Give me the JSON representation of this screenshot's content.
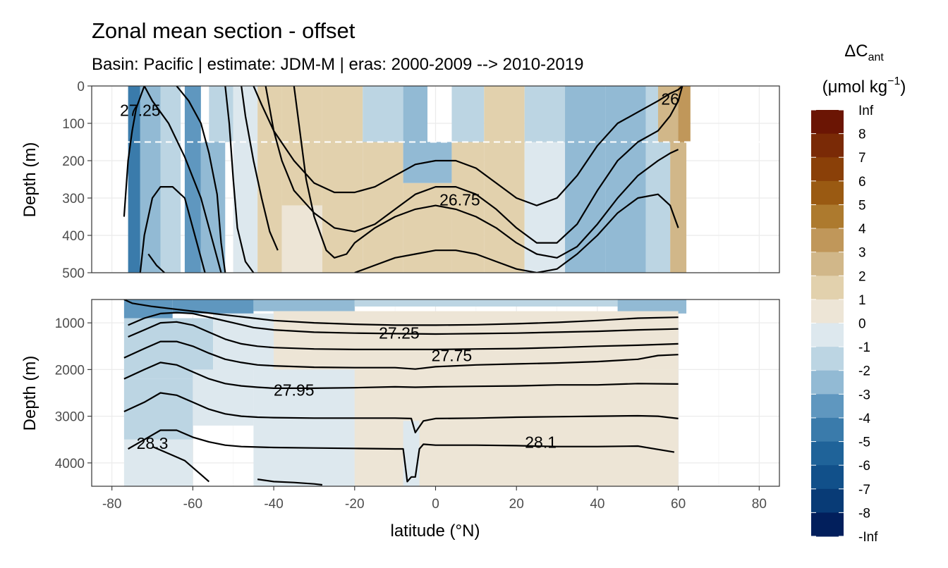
{
  "chart_data": {
    "type": "heatmap",
    "title": "Zonal mean section - offset",
    "subtitle": "Basin: Pacific | estimate: JDM-M | eras: 2000-2009 --> 2010-2019",
    "xlabel": "latitude (°N)",
    "ylabel": "Depth (m)",
    "xlim": [
      -85,
      85
    ],
    "x_ticks": [
      -80,
      -60,
      -40,
      -20,
      0,
      20,
      40,
      60,
      80
    ],
    "x_tick_labels": [
      "-80",
      "-60",
      "-40",
      "-20",
      "0",
      "20",
      "40",
      "60",
      "80"
    ],
    "data_extent_lat": [
      -77,
      62
    ],
    "grid": true,
    "panels": [
      {
        "name": "upper",
        "ylim": [
          0,
          500
        ],
        "y_ticks": [
          0,
          100,
          200,
          300,
          400,
          500
        ],
        "y_tick_labels": [
          "0",
          "100",
          "200",
          "300",
          "400",
          "500"
        ],
        "reference_depth": 150,
        "contour_labels": [
          {
            "text": "27.25",
            "lat": -73,
            "depth": 65
          },
          {
            "text": "26",
            "lat": 58,
            "depth": 35
          },
          {
            "text": "26.75",
            "lat": 6,
            "depth": 305
          }
        ],
        "isopycnals": [
          {
            "lat": [
              -77,
              -76,
              -75,
              -74,
              -72
            ],
            "depth": [
              350,
              200,
              120,
              60,
              0
            ]
          },
          {
            "lat": [
              -73,
              -72,
              -70,
              -68,
              -65,
              -62,
              -60,
              -58,
              -57
            ],
            "depth": [
              500,
              400,
              300,
              270,
              270,
              300,
              380,
              460,
              500
            ]
          },
          {
            "lat": [
              -72,
              -70,
              -66,
              -62,
              -58,
              -55,
              -53
            ],
            "depth": [
              0,
              40,
              100,
              190,
              300,
              420,
              500
            ]
          },
          {
            "lat": [
              -64,
              -61,
              -58,
              -56,
              -54,
              -53,
              -52
            ],
            "depth": [
              0,
              40,
              100,
              180,
              290,
              420,
              500
            ]
          },
          {
            "lat": [
              -52,
              -51,
              -50,
              -49,
              -47,
              -45
            ],
            "depth": [
              0,
              100,
              250,
              380,
              470,
              500
            ]
          },
          {
            "lat": [
              -48,
              -47,
              -45,
              -43,
              -41,
              -39
            ],
            "depth": [
              0,
              80,
              200,
              300,
              390,
              440
            ]
          },
          {
            "lat": [
              -45,
              -43,
              -40,
              -35,
              -30,
              -25,
              -20,
              -15,
              -10,
              -5,
              0,
              5,
              10,
              15,
              20,
              25,
              30,
              35,
              40,
              45,
              50,
              55,
              58,
              60,
              61
            ],
            "depth": [
              0,
              50,
              120,
              200,
              260,
              285,
              285,
              270,
              240,
              210,
              200,
              200,
              220,
              260,
              300,
              320,
              300,
              240,
              160,
              100,
              70,
              40,
              20,
              10,
              0
            ]
          },
          {
            "lat": [
              -42,
              -40,
              -38,
              -35,
              -30,
              -25,
              -20,
              -15,
              -10,
              -5,
              0,
              5,
              10,
              15,
              20,
              25,
              30,
              35,
              40,
              45,
              50,
              55,
              58,
              60,
              61
            ],
            "depth": [
              0,
              120,
              200,
              280,
              340,
              380,
              390,
              370,
              330,
              290,
              270,
              270,
              290,
              330,
              380,
              420,
              420,
              370,
              280,
              200,
              150,
              120,
              80,
              40,
              0
            ]
          },
          {
            "lat": [
              -35,
              -32,
              -30,
              -27,
              -25,
              -22,
              -20,
              -15,
              -10,
              -5,
              0,
              5,
              10,
              15,
              20,
              25,
              30,
              35,
              40,
              45,
              50,
              55,
              58,
              60
            ],
            "depth": [
              0,
              250,
              350,
              440,
              460,
              450,
              420,
              380,
              350,
              330,
              320,
              330,
              350,
              380,
              420,
              450,
              460,
              430,
              370,
              300,
              240,
              200,
              180,
              170
            ]
          },
          {
            "lat": [
              -20,
              -15,
              -10,
              -5,
              0,
              5,
              10,
              15,
              20,
              25,
              30,
              35,
              40,
              45,
              50,
              55,
              58,
              60
            ],
            "depth": [
              500,
              480,
              460,
              450,
              440,
              440,
              450,
              470,
              490,
              500,
              490,
              450,
              400,
              340,
              300,
              290,
              320,
              380
            ]
          },
          {
            "lat": [
              -71,
              -69,
              -67
            ],
            "depth": [
              450,
              480,
              500
            ]
          }
        ]
      },
      {
        "name": "deep",
        "ylim": [
          500,
          4500
        ],
        "y_ticks": [
          1000,
          2000,
          3000,
          4000
        ],
        "y_tick_labels": [
          "1000",
          "2000",
          "3000",
          "4000"
        ],
        "contour_labels": [
          {
            "text": "27.25",
            "lat": -9,
            "depth": 1220
          },
          {
            "text": "27.75",
            "lat": 4,
            "depth": 1700
          },
          {
            "text": "27.95",
            "lat": -35,
            "depth": 2440
          },
          {
            "text": "28.3",
            "lat": -70,
            "depth": 3580
          },
          {
            "text": "28.1",
            "lat": 26,
            "depth": 3560
          }
        ],
        "isopycnals": [
          {
            "lat": [
              -77,
              -75,
              -70,
              -65,
              -60,
              -55,
              -50,
              -45,
              -40,
              -30,
              -20,
              -10,
              0,
              10,
              20,
              30,
              40,
              50,
              60
            ],
            "depth": [
              500,
              580,
              650,
              700,
              750,
              800,
              850,
              900,
              950,
              1000,
              1030,
              1050,
              1050,
              1040,
              1020,
              990,
              950,
              900,
              880
            ]
          },
          {
            "lat": [
              -76,
              -72,
              -68,
              -64,
              -60,
              -55,
              -50,
              -45,
              -40,
              -30,
              -20,
              -10,
              0,
              10,
              20,
              30,
              40,
              50,
              60
            ],
            "depth": [
              1050,
              900,
              800,
              780,
              800,
              900,
              1000,
              1100,
              1150,
              1200,
              1220,
              1230,
              1240,
              1230,
              1220,
              1200,
              1180,
              1150,
              1130
            ]
          },
          {
            "lat": [
              -76,
              -72,
              -68,
              -64,
              -60,
              -56,
              -52,
              -48,
              -44,
              -40,
              -30,
              -20,
              -10,
              0,
              10,
              20,
              30,
              40,
              50,
              60
            ],
            "depth": [
              1300,
              1150,
              1000,
              980,
              1050,
              1200,
              1350,
              1450,
              1500,
              1530,
              1560,
              1570,
              1570,
              1570,
              1560,
              1550,
              1530,
              1500,
              1480,
              1450
            ]
          },
          {
            "lat": [
              -77,
              -72,
              -68,
              -64,
              -60,
              -56,
              -52,
              -48,
              -44,
              -40,
              -30,
              -20,
              -10,
              -5,
              0,
              10,
              20,
              30,
              40,
              50,
              55,
              60
            ],
            "depth": [
              1750,
              1550,
              1400,
              1400,
              1500,
              1650,
              1780,
              1850,
              1900,
              1920,
              1950,
              1960,
              1960,
              1990,
              1940,
              1900,
              1880,
              1860,
              1830,
              1780,
              1700,
              1680
            ]
          },
          {
            "lat": [
              -77,
              -72,
              -68,
              -64,
              -60,
              -56,
              -52,
              -48,
              -44,
              -40,
              -30,
              -20,
              -10,
              -5,
              0,
              10,
              20,
              30,
              40,
              50,
              60
            ],
            "depth": [
              2200,
              2000,
              1850,
              1900,
              2050,
              2200,
              2300,
              2350,
              2380,
              2400,
              2400,
              2390,
              2370,
              2380,
              2370,
              2360,
              2350,
              2330,
              2330,
              2300,
              2310
            ]
          },
          {
            "lat": [
              -77,
              -72,
              -68,
              -64,
              -60,
              -56,
              -52,
              -48,
              -44,
              -40,
              -30,
              -20,
              -10,
              -6,
              -5,
              -3,
              0,
              10,
              20,
              30,
              40,
              50,
              55,
              60
            ],
            "depth": [
              2900,
              2700,
              2500,
              2550,
              2700,
              2850,
              2950,
              3000,
              3020,
              3030,
              3040,
              3040,
              3040,
              3050,
              3350,
              3100,
              3050,
              3040,
              3020,
              3010,
              3000,
              2990,
              3000,
              3050
            ]
          },
          {
            "lat": [
              -76,
              -72,
              -68,
              -64,
              -60,
              -56,
              -52,
              -48,
              -44,
              -40,
              -30,
              -20,
              -10,
              -8,
              -7,
              -6,
              -5,
              -4,
              -3,
              0,
              10,
              20,
              30,
              40,
              50,
              59
            ],
            "depth": [
              3700,
              3500,
              3300,
              3300,
              3450,
              3550,
              3620,
              3650,
              3660,
              3670,
              3680,
              3690,
              3700,
              3700,
              4400,
              4300,
              4300,
              3700,
              3600,
              3620,
              3620,
              3630,
              3650,
              3650,
              3640,
              3770
            ]
          },
          {
            "lat": [
              -70,
              -66,
              -62,
              -58,
              -56
            ],
            "depth": [
              3650,
              3800,
              3950,
              4250,
              4400
            ]
          },
          {
            "lat": [
              -44,
              -40,
              -35,
              -30,
              -28
            ],
            "depth": [
              4350,
              4400,
              4420,
              4450,
              4470
            ]
          }
        ]
      }
    ],
    "colorbar": {
      "title_main": "ΔC",
      "title_sub": "ant",
      "units_main": "(μmol kg",
      "units_sup": "−1",
      "units_end": ")",
      "labels": [
        "Inf",
        "8",
        "7",
        "6",
        "5",
        "4",
        "3",
        "2",
        "1",
        "0",
        "-1",
        "-2",
        "-3",
        "-4",
        "-5",
        "-6",
        "-7",
        "-8",
        "-Inf"
      ],
      "colors": [
        "#6b1504",
        "#7a2a06",
        "#8a4008",
        "#9a5a12",
        "#ad7a2e",
        "#c0975a",
        "#d1b789",
        "#e2d1ad",
        "#ede5d6",
        "#dde8ee",
        "#bcd5e3",
        "#92bad4",
        "#5f97bf",
        "#3a7bab",
        "#1f6399",
        "#11508a",
        "#083b76",
        "#021f5c"
      ]
    }
  }
}
